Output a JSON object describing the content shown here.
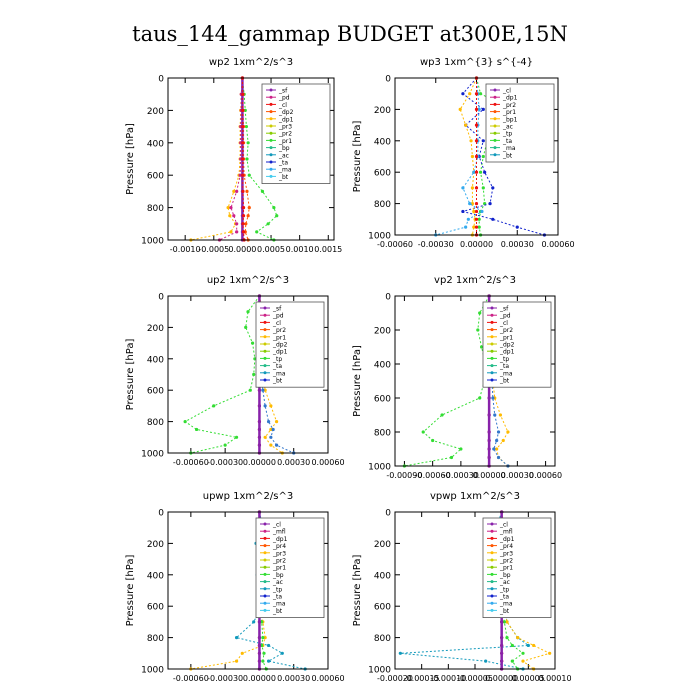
{
  "title": "taus_144_gammap  BUDGET at300E,15N",
  "chart_data": [
    {
      "type": "line",
      "title": "wp2  1xm^2/s^3",
      "ylabel": "Pressure [hPa]",
      "xlabel": "",
      "ylim": [
        1000,
        0
      ],
      "xlim": [
        -0.0013,
        0.0016
      ],
      "xticks": [
        "-0.0010",
        "-0.0005",
        "0.0000",
        "0.0005",
        "0.0010",
        "0.0015"
      ],
      "xtick_values": [
        -0.001,
        -0.0005,
        0,
        0.0005,
        0.001,
        0.0015
      ],
      "yticks": [
        0,
        200,
        400,
        600,
        800,
        1000
      ],
      "legend": [
        "_sf",
        "_pd",
        "_cl",
        "_dp2",
        "_dp1",
        "_pr3",
        "_pr2",
        "_pr1",
        "_bp",
        "_ac",
        "_ta",
        "_ma",
        "_bt"
      ],
      "levels": [
        0,
        100,
        200,
        300,
        400,
        500,
        600,
        700,
        800,
        850,
        900,
        950,
        1000
      ],
      "series": [
        {
          "name": "_bp",
          "color": "#33dd33",
          "values": [
            0,
            3e-05,
            5e-05,
            7e-05,
            0.0001,
            8e-05,
            0.00012,
            0.00035,
            0.00055,
            0.0006,
            0.00045,
            0.00025,
            0.00055
          ]
        },
        {
          "name": "_pr1",
          "color": "#ffbb00",
          "values": [
            0,
            -2e-05,
            -3e-05,
            -4e-05,
            -4e-05,
            -4e-05,
            -6e-05,
            -0.00015,
            -0.00025,
            -0.00022,
            -0.00012,
            -0.0002,
            -0.0009
          ]
        },
        {
          "name": "_ac",
          "color": "#ff5500",
          "values": [
            0,
            1e-05,
            1e-05,
            2e-05,
            2e-05,
            2e-05,
            3e-05,
            8e-05,
            0.00012,
            0.0001,
            6e-05,
            5e-05,
            0.0001
          ]
        },
        {
          "name": "_dp1",
          "color": "#cc2288",
          "values": [
            0,
            -2e-05,
            -2e-05,
            -3e-05,
            -3e-05,
            -3e-05,
            -4e-05,
            -0.0001,
            -0.0002,
            -0.00015,
            -0.0001,
            -0.0001,
            -0.0004
          ]
        },
        {
          "name": "_pd",
          "color": "#8822aa",
          "values": [
            0,
            0,
            0,
            0,
            0,
            0,
            0,
            0,
            0,
            0,
            0,
            0,
            0
          ]
        },
        {
          "name": "_cl",
          "color": "#ee1111",
          "values": [
            0,
            5e-06,
            5e-06,
            5e-06,
            5e-06,
            5e-06,
            5e-06,
            1e-05,
            2e-05,
            2e-05,
            1e-05,
            2e-05,
            3e-05
          ]
        }
      ]
    },
    {
      "type": "line",
      "title": "wp3  1xm^{3} s^{-4}",
      "ylabel": "Pressure [hPa]",
      "xlabel": "",
      "ylim": [
        1000,
        0
      ],
      "xlim": [
        -0.0006,
        0.0006
      ],
      "xticks": [
        "-0.00060",
        "-0.00030",
        "0.00000",
        "0.00030",
        "0.00060"
      ],
      "xtick_values": [
        -0.0006,
        -0.0003,
        0,
        0.0003,
        0.0006
      ],
      "yticks": [
        0,
        200,
        400,
        600,
        800,
        1000
      ],
      "legend": [
        "_cl",
        "_dp1",
        "_pr2",
        "_pr1",
        "_bp1",
        "_ac",
        "_tp",
        "_ta",
        "_ma",
        "_bt"
      ],
      "levels": [
        0,
        100,
        200,
        300,
        400,
        500,
        600,
        700,
        800,
        850,
        900,
        950,
        1000
      ],
      "series": [
        {
          "name": "_bp1",
          "color": "#33dd33",
          "values": [
            0,
            3e-05,
            0.00025,
            0.00015,
            8e-05,
            5e-05,
            3e-05,
            5e-05,
            6e-05,
            3e-05,
            2e-05,
            2e-05,
            3e-05
          ]
        },
        {
          "name": "_tp",
          "color": "#1122cc",
          "values": [
            0,
            -0.0001,
            5e-05,
            -8e-05,
            5e-05,
            2e-05,
            6e-05,
            0.00012,
            0.0001,
            -0.0001,
            0.00012,
            0.0003,
            0.0005
          ]
        },
        {
          "name": "_pr2",
          "color": "#ffbb00",
          "values": [
            0,
            -5e-05,
            -0.00012,
            -8e-05,
            -4e-05,
            -3e-05,
            -2e-05,
            -3e-05,
            -3e-05,
            -2e-05,
            -1e-05,
            -2e-05,
            -3e-05
          ]
        },
        {
          "name": "_ma",
          "color": "#33aaee",
          "values": [
            0,
            1e-05,
            2e-05,
            1e-05,
            1e-05,
            1e-05,
            -2e-05,
            -0.0001,
            -5e-05,
            4e-05,
            -6e-05,
            -8e-05,
            -0.0003
          ]
        },
        {
          "name": "_cl",
          "color": "#ee1111",
          "values": [
            0,
            0,
            0,
            0,
            0,
            0,
            0,
            0,
            0,
            0,
            0,
            0,
            0
          ]
        }
      ]
    },
    {
      "type": "line",
      "title": "up2  1xm^2/s^3",
      "ylabel": "Pressure [hPa]",
      "xlabel": "",
      "ylim": [
        1000,
        0
      ],
      "xlim": [
        -0.0008,
        0.0006
      ],
      "xticks": [
        "-0.00060",
        "-0.00030",
        "0.00000",
        "0.00030",
        "0.00060"
      ],
      "xtick_values": [
        -0.0006,
        -0.0003,
        0,
        0.0003,
        0.0006
      ],
      "yticks": [
        0,
        200,
        400,
        600,
        800,
        1000
      ],
      "legend": [
        "_sf",
        "_pd",
        "_cl",
        "_pr2",
        "_pr1",
        "_dp2",
        "_dp1",
        "_tp",
        "_ta",
        "_ma",
        "_bt"
      ],
      "levels": [
        0,
        100,
        200,
        300,
        400,
        500,
        600,
        700,
        800,
        850,
        900,
        950,
        1000
      ],
      "series": [
        {
          "name": "_dp1",
          "color": "#33dd33",
          "values": [
            0,
            -0.0001,
            -0.00012,
            -6e-05,
            -4e-05,
            -5e-05,
            -8e-05,
            -0.0004,
            -0.00065,
            -0.00055,
            -0.0002,
            -0.0003,
            -0.0006
          ]
        },
        {
          "name": "_pr1",
          "color": "#ffbb00",
          "values": [
            0,
            3e-05,
            5e-05,
            3e-05,
            2e-05,
            3e-05,
            5e-05,
            0.0001,
            0.00015,
            0.0001,
            5e-05,
            0.0001,
            0.0002
          ]
        },
        {
          "name": "_tp",
          "color": "#3377cc",
          "values": [
            0,
            2e-05,
            4e-05,
            6e-05,
            3e-05,
            2e-05,
            3e-05,
            5e-05,
            8e-05,
            0.00012,
            0.0001,
            0.00015,
            0.0003
          ]
        },
        {
          "name": "_cl",
          "color": "#ee1111",
          "values": [
            0,
            0,
            0,
            0,
            0,
            0,
            0,
            0,
            0,
            0,
            0,
            0,
            0
          ]
        },
        {
          "name": "_pd",
          "color": "#8822aa",
          "values": [
            0,
            0,
            0,
            0,
            0,
            0,
            0,
            0,
            0,
            0,
            0,
            0,
            0
          ]
        }
      ]
    },
    {
      "type": "line",
      "title": "vp2  1xm^2/s^3",
      "ylabel": "Pressure [hPa]",
      "xlabel": "",
      "ylim": [
        1000,
        0
      ],
      "xlim": [
        -0.001,
        0.0007
      ],
      "xticks": [
        "-0.00090",
        "-0.00060",
        "-0.00030",
        "0.00000",
        "0.00030",
        "0.00060"
      ],
      "xtick_values": [
        -0.0009,
        -0.0006,
        -0.0003,
        0,
        0.0003,
        0.0006
      ],
      "yticks": [
        0,
        200,
        400,
        600,
        800,
        1000
      ],
      "legend": [
        "_sf",
        "_pd",
        "_cl",
        "_pr2",
        "_pr1",
        "_dp2",
        "_dp1",
        "_tp",
        "_ta",
        "_ma",
        "_bt"
      ],
      "levels": [
        0,
        100,
        200,
        300,
        400,
        500,
        600,
        700,
        800,
        850,
        900,
        950,
        1000
      ],
      "series": [
        {
          "name": "_dp1",
          "color": "#33dd33",
          "values": [
            0,
            -0.0001,
            -0.00012,
            -8e-05,
            -4e-05,
            -5e-05,
            -0.0001,
            -0.0005,
            -0.0007,
            -0.0006,
            -0.0003,
            -0.0004,
            -0.0009
          ]
        },
        {
          "name": "_pr1",
          "color": "#ffbb00",
          "values": [
            0,
            3e-05,
            8e-05,
            4e-05,
            3e-05,
            4e-05,
            6e-05,
            0.00012,
            0.0002,
            0.00015,
            8e-05,
            0.0001,
            0.0002
          ]
        },
        {
          "name": "_tp",
          "color": "#3377cc",
          "values": [
            0,
            3e-05,
            5e-05,
            8e-05,
            4e-05,
            3e-05,
            4e-05,
            6e-05,
            0.0001,
            8e-05,
            5e-05,
            0.0001,
            0.0002
          ]
        },
        {
          "name": "_cl",
          "color": "#ee1111",
          "values": [
            0,
            0,
            0,
            0,
            0,
            0,
            0,
            0,
            0,
            0,
            0,
            0,
            0
          ]
        },
        {
          "name": "_pd",
          "color": "#8822aa",
          "values": [
            0,
            0,
            0,
            0,
            0,
            0,
            0,
            0,
            0,
            0,
            0,
            0,
            0
          ]
        }
      ]
    },
    {
      "type": "line",
      "title": "upwp  1xm^2/s^3",
      "ylabel": "Pressure [hPa]",
      "xlabel": "",
      "ylim": [
        1000,
        0
      ],
      "xlim": [
        -0.0008,
        0.0006
      ],
      "xticks": [
        "-0.00060",
        "-0.00030",
        "0.00000",
        "0.00030",
        "0.00060"
      ],
      "xtick_values": [
        -0.0006,
        -0.0003,
        0,
        0.0003,
        0.0006
      ],
      "yticks": [
        0,
        200,
        400,
        600,
        800,
        1000
      ],
      "legend": [
        "_cl",
        "_mfl",
        "_dp1",
        "_pr4",
        "_pr3",
        "_pr2",
        "_pr1",
        "_bp",
        "_ac",
        "_tp",
        "_ta",
        "_ma",
        "_bt"
      ],
      "levels": [
        0,
        100,
        200,
        300,
        400,
        500,
        600,
        700,
        800,
        850,
        900,
        950,
        1000
      ],
      "series": [
        {
          "name": "_tp",
          "color": "#1199bb",
          "values": [
            0,
            3e-05,
            -3e-05,
            2e-05,
            -2e-05,
            1e-05,
            2e-05,
            -5e-05,
            -0.0002,
            8e-05,
            0.0002,
            8e-05,
            0.0004
          ]
        },
        {
          "name": "_pr1",
          "color": "#ffbb00",
          "values": [
            0,
            1e-05,
            2e-05,
            1e-05,
            1e-05,
            1e-05,
            1e-05,
            3e-05,
            5e-05,
            3e-05,
            -0.00015,
            -0.0002,
            -0.0006
          ]
        },
        {
          "name": "_bp",
          "color": "#33dd33",
          "values": [
            0,
            1e-05,
            1e-05,
            1e-05,
            0,
            0,
            1e-05,
            2e-05,
            3e-05,
            2e-05,
            4e-05,
            3e-05,
            6e-05
          ]
        },
        {
          "name": "_cl",
          "color": "#ee1111",
          "values": [
            0,
            0,
            0,
            0,
            0,
            0,
            0,
            0,
            0,
            0,
            0,
            0,
            0
          ]
        },
        {
          "name": "_mfl",
          "color": "#8822aa",
          "values": [
            0,
            0,
            0,
            0,
            0,
            0,
            0,
            0,
            0,
            0,
            0,
            0,
            0
          ]
        }
      ]
    },
    {
      "type": "line",
      "title": "vpwp  1xm^2/s^3",
      "ylabel": "Pressure [hPa]",
      "xlabel": "",
      "ylim": [
        1000,
        0
      ],
      "xlim": [
        -0.0002,
        0.0001
      ],
      "xticks": [
        "-0.00020",
        "-0.00015",
        "-0.00010",
        "-0.00005",
        "0.00000",
        "0.00005",
        "0.00010"
      ],
      "xtick_values": [
        -0.0002,
        -0.00015,
        -0.0001,
        -5e-05,
        0,
        5e-05,
        0.0001
      ],
      "yticks": [
        0,
        200,
        400,
        600,
        800,
        1000
      ],
      "legend": [
        "_cl",
        "_mfl",
        "_dp1",
        "_pr4",
        "_pr3",
        "_pr2",
        "_pr1",
        "_bp",
        "_ac",
        "_tp",
        "_ta",
        "_ma",
        "_bt"
      ],
      "levels": [
        0,
        100,
        200,
        300,
        400,
        500,
        600,
        700,
        800,
        850,
        900,
        950,
        1000
      ],
      "series": [
        {
          "name": "_tp",
          "color": "#1199bb",
          "values": [
            0,
            -1e-05,
            5e-06,
            -5e-06,
            5e-06,
            0,
            5e-06,
            1e-05,
            3e-05,
            5e-05,
            -0.00019,
            -3e-05,
            4e-05
          ]
        },
        {
          "name": "_pr1",
          "color": "#ffbb00",
          "values": [
            0,
            5e-06,
            5e-06,
            0,
            0,
            0,
            5e-06,
            1e-05,
            3e-05,
            6e-05,
            9e-05,
            4e-05,
            6e-05
          ]
        },
        {
          "name": "_bp",
          "color": "#33dd33",
          "values": [
            0,
            0,
            0,
            0,
            0,
            0,
            0,
            5e-06,
            1e-05,
            2e-05,
            4e-05,
            2e-05,
            3e-05
          ]
        },
        {
          "name": "_cl",
          "color": "#ee1111",
          "values": [
            0,
            0,
            0,
            0,
            0,
            0,
            0,
            0,
            0,
            0,
            0,
            0,
            0
          ]
        },
        {
          "name": "_mfl",
          "color": "#8822aa",
          "values": [
            0,
            0,
            0,
            0,
            0,
            0,
            0,
            0,
            0,
            0,
            0,
            0,
            0
          ]
        }
      ]
    }
  ]
}
